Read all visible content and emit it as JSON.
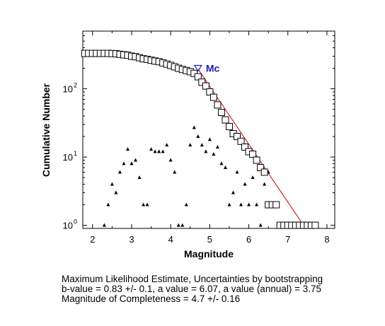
{
  "chart_data": {
    "type": "scatter",
    "xlabel": "Magnitude",
    "ylabel": "Cumulative Number",
    "xlim": [
      1.75,
      8.2
    ],
    "ylim": [
      0.9,
      700
    ],
    "yscale": "log",
    "xticks": [
      2,
      3,
      4,
      5,
      6,
      7,
      8
    ],
    "yticks": [
      {
        "value": 1,
        "base": "10",
        "exp": "0"
      },
      {
        "value": 10,
        "base": "10",
        "exp": "1"
      },
      {
        "value": 100,
        "base": "10",
        "exp": "2"
      }
    ],
    "mc_annotation": {
      "text": "Mc",
      "x": 4.7,
      "y": 200,
      "color": "#1c1cb4"
    },
    "series": [
      {
        "marker": "square",
        "color": "#000000",
        "x": [
          1.8,
          1.9,
          2.0,
          2.1,
          2.2,
          2.3,
          2.4,
          2.5,
          2.6,
          2.7,
          2.8,
          2.9,
          3.0,
          3.1,
          3.2,
          3.3,
          3.4,
          3.5,
          3.6,
          3.7,
          3.8,
          3.9,
          4.0,
          4.1,
          4.2,
          4.3,
          4.4,
          4.5,
          4.6,
          4.7,
          4.8,
          4.9,
          5.0,
          5.1,
          5.2,
          5.3,
          5.4,
          5.5,
          5.6,
          5.7,
          5.8,
          5.9,
          6.0,
          6.1,
          6.2,
          6.3,
          6.4,
          6.5,
          6.6,
          6.7,
          6.8,
          6.9,
          7.0,
          7.1,
          7.2,
          7.3,
          7.4,
          7.5,
          7.6,
          7.7
        ],
        "y": [
          330,
          330,
          330,
          330,
          330,
          330,
          330,
          328,
          326,
          320,
          315,
          310,
          300,
          295,
          285,
          275,
          270,
          262,
          255,
          250,
          240,
          230,
          220,
          210,
          200,
          192,
          185,
          178,
          168,
          150,
          125,
          110,
          90,
          75,
          58,
          45,
          35,
          28,
          22,
          20,
          17,
          14,
          12,
          11,
          9,
          7,
          6,
          2,
          2,
          2,
          1,
          1,
          1,
          1,
          1,
          1,
          1,
          1,
          1,
          1
        ]
      },
      {
        "marker": "triangle",
        "color": "#000000",
        "x": [
          2.3,
          2.4,
          2.5,
          2.6,
          2.7,
          2.8,
          2.9,
          3.0,
          3.1,
          3.2,
          3.3,
          3.4,
          3.5,
          3.6,
          3.7,
          3.8,
          3.9,
          4.0,
          4.1,
          4.2,
          4.3,
          4.4,
          4.5,
          4.6,
          4.7,
          4.8,
          4.9,
          5.0,
          5.1,
          5.2,
          5.3,
          5.4,
          5.5,
          5.6,
          5.7,
          5.8,
          5.9,
          6.0,
          6.1,
          6.2,
          6.3,
          6.4,
          6.5
        ],
        "y": [
          1,
          2,
          4,
          3,
          6,
          8,
          13,
          8,
          9,
          5,
          2,
          2,
          13,
          12,
          12,
          12,
          15,
          9,
          6,
          1,
          1,
          2,
          15,
          27,
          20,
          15,
          12,
          18,
          11,
          14,
          8,
          7,
          2,
          3,
          6,
          2,
          4,
          2,
          5,
          2,
          1,
          4,
          6
        ]
      },
      {
        "marker": "line",
        "color": "#cc0000",
        "x": [
          4.7,
          7.4
        ],
        "y": [
          195,
          1
        ]
      }
    ]
  },
  "caption": {
    "line1": "Maximum Likelihood Estimate, Uncertainties by bootstrapping",
    "line2": "b-value = 0.83 +/- 0.1,  a value = 6.07,  a value (annual) = 3.75",
    "line3": "Magnitude of Completeness = 4.7 +/- 0.16"
  }
}
